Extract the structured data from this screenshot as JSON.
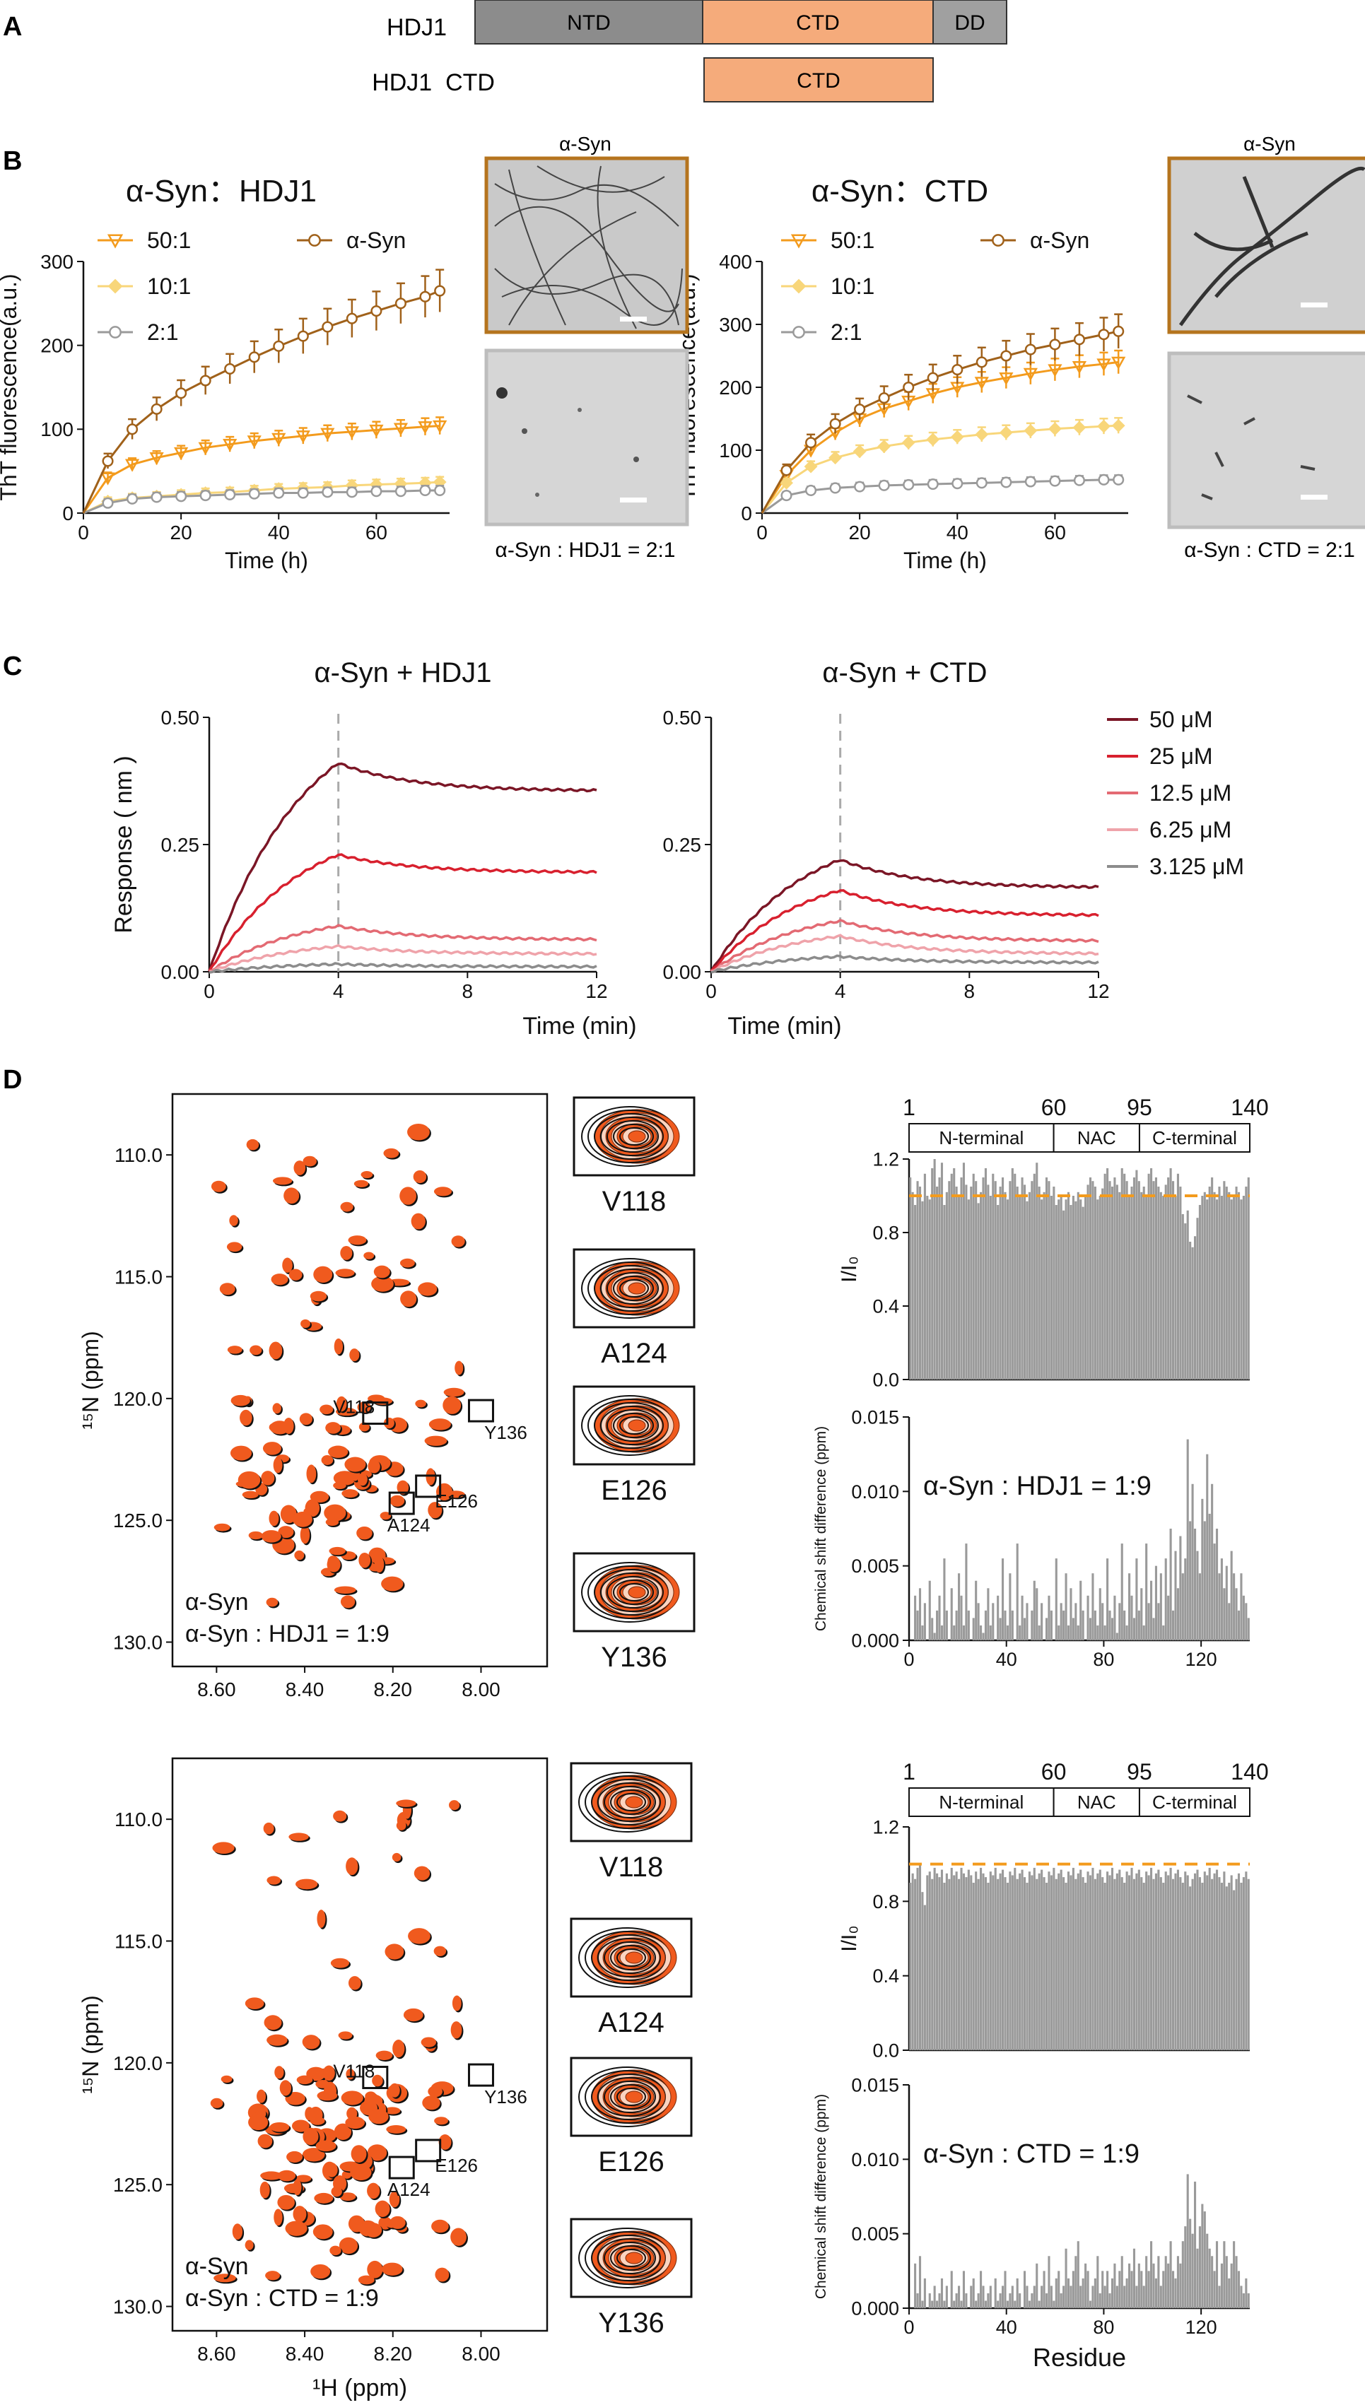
{
  "panel_letters": [
    "A",
    "B",
    "C",
    "D"
  ],
  "colors": {
    "ntd": "#8c8c8c",
    "ctd": "#f5ab7b",
    "dd": "#a0a0a0",
    "asyn": "#a0611a",
    "r50": "#f39b1d",
    "r10": "#f8d67a",
    "r2": "#9a9a9a",
    "c50": "#7b1626",
    "c25": "#d8202e",
    "c12": "#e36a73",
    "c6": "#efa3aa",
    "c3": "#8c8c8c",
    "nmr_orange": "#f05a1e",
    "bar": "#9a9a9a",
    "dash": "#f39b1d"
  },
  "panelA": {
    "rows": [
      {
        "label": "HDJ1",
        "segments": [
          "NTD",
          "CTD",
          "DD"
        ]
      },
      {
        "label": "HDJ1  CTD",
        "segments": [
          "CTD"
        ]
      }
    ]
  },
  "panelB": {
    "micro_title": "α-Syn",
    "caption_left": "α-Syn : HDJ1 = 2:1",
    "caption_right": "α-Syn : CTD = 2:1"
  },
  "panelD": {
    "residue_labels": [
      "V118",
      "A124",
      "E126",
      "Y136"
    ],
    "spectra": [
      {
        "legend1": "α-Syn",
        "legend2": "α-Syn : HDJ1 = 1:9"
      },
      {
        "legend1": "α-Syn",
        "legend2": "α-Syn : CTD = 1:9"
      }
    ],
    "domain_bar": {
      "segments": [
        "N-terminal",
        "NAC",
        "C-terminal"
      ],
      "ticks": [
        "1",
        "60",
        "95",
        "140"
      ]
    },
    "xlabel_nmr": "¹H (ppm)",
    "ylabel_nmr": "¹⁵N (ppm)",
    "ylabel_ratio": "I/I₀",
    "ylabel_csp": "Chemical shift difference (ppm)",
    "xlabel_residue": "Residue"
  },
  "chart_data": [
    {
      "id": "B-left",
      "type": "line",
      "title": "α-Syn：HDJ1",
      "xlabel": "Time (h)",
      "ylabel": "ThT fluorescence(a.u.)",
      "xlim": [
        0,
        75
      ],
      "ylim": [
        0,
        300
      ],
      "xticks": [
        0,
        20,
        40,
        60
      ],
      "yticks": [
        0,
        100,
        200,
        300
      ],
      "x": [
        0,
        5,
        10,
        15,
        20,
        25,
        30,
        35,
        40,
        45,
        50,
        55,
        60,
        65,
        70,
        73
      ],
      "series": [
        {
          "name": "50:1",
          "marker": "triangle-down",
          "values": [
            0,
            42,
            58,
            66,
            72,
            78,
            82,
            86,
            89,
            92,
            95,
            97,
            99,
            101,
            103,
            104
          ]
        },
        {
          "name": "10:1",
          "marker": "diamond",
          "values": [
            0,
            14,
            18,
            20,
            22,
            24,
            25,
            27,
            29,
            30,
            31,
            33,
            34,
            35,
            36,
            37
          ]
        },
        {
          "name": "2:1",
          "marker": "circle",
          "values": [
            0,
            12,
            17,
            19,
            20,
            21,
            22,
            23,
            24,
            24,
            25,
            25,
            26,
            26,
            27,
            27
          ]
        },
        {
          "name": "α-Syn",
          "marker": "circle",
          "values": [
            0,
            62,
            100,
            124,
            143,
            158,
            172,
            186,
            199,
            211,
            222,
            232,
            241,
            250,
            258,
            265
          ]
        }
      ],
      "legend": [
        "50:1",
        "10:1",
        "2:1",
        "α-Syn"
      ]
    },
    {
      "id": "B-right",
      "type": "line",
      "title": "α-Syn：CTD",
      "xlabel": "Time (h)",
      "ylabel": "ThT fluorescence(a.u.)",
      "xlim": [
        0,
        75
      ],
      "ylim": [
        0,
        400
      ],
      "xticks": [
        0,
        20,
        40,
        60
      ],
      "yticks": [
        0,
        100,
        200,
        300,
        400
      ],
      "x": [
        0,
        5,
        10,
        15,
        20,
        25,
        30,
        35,
        40,
        45,
        50,
        55,
        60,
        65,
        70,
        73
      ],
      "series": [
        {
          "name": "50:1",
          "marker": "triangle-down",
          "values": [
            0,
            60,
            100,
            128,
            150,
            166,
            178,
            190,
            200,
            208,
            215,
            222,
            228,
            233,
            237,
            240
          ]
        },
        {
          "name": "10:1",
          "marker": "diamond",
          "values": [
            0,
            48,
            74,
            88,
            98,
            106,
            112,
            117,
            121,
            125,
            128,
            131,
            134,
            136,
            138,
            139
          ]
        },
        {
          "name": "2:1",
          "marker": "circle",
          "values": [
            0,
            28,
            36,
            40,
            42,
            44,
            45,
            46,
            47,
            48,
            49,
            50,
            51,
            52,
            53,
            53
          ]
        },
        {
          "name": "α-Syn",
          "marker": "circle",
          "values": [
            0,
            68,
            112,
            142,
            165,
            183,
            200,
            215,
            228,
            240,
            250,
            260,
            268,
            276,
            284,
            289
          ]
        }
      ],
      "legend": [
        "50:1",
        "10:1",
        "2:1",
        "α-Syn"
      ]
    },
    {
      "id": "C-left",
      "type": "line",
      "title": "α-Syn + HDJ1",
      "xlabel": "Time (min)",
      "ylabel": "Response ( nm )",
      "xlim": [
        0,
        12
      ],
      "ylim": [
        0,
        0.5
      ],
      "xticks": [
        0,
        4,
        8,
        12
      ],
      "yticks": [
        "0.00",
        "0.25",
        "0.50"
      ],
      "association_end": 4,
      "series": [
        {
          "name": "50 μM",
          "peak": 0.41,
          "end": 0.355
        },
        {
          "name": "25 μM",
          "peak": 0.23,
          "end": 0.195
        },
        {
          "name": "12.5 μM",
          "peak": 0.09,
          "end": 0.063
        },
        {
          "name": "6.25 μM",
          "peak": 0.05,
          "end": 0.035
        },
        {
          "name": "3.125 μM",
          "peak": 0.015,
          "end": 0.01
        }
      ]
    },
    {
      "id": "C-right",
      "type": "line",
      "title": "α-Syn + CTD",
      "xlabel": "Time (min)",
      "ylabel": "",
      "xlim": [
        0,
        12
      ],
      "ylim": [
        0,
        0.5
      ],
      "xticks": [
        0,
        4,
        8,
        12
      ],
      "yticks": [
        "0.00",
        "0.25",
        "0.50"
      ],
      "association_end": 4,
      "series": [
        {
          "name": "50 μM",
          "peak": 0.22,
          "end": 0.165
        },
        {
          "name": "25 μM",
          "peak": 0.16,
          "end": 0.11
        },
        {
          "name": "12.5 μM",
          "peak": 0.1,
          "end": 0.06
        },
        {
          "name": "6.25 μM",
          "peak": 0.07,
          "end": 0.035
        },
        {
          "name": "3.125 μM",
          "peak": 0.03,
          "end": 0.018
        }
      ],
      "legend": [
        "50 μM",
        "25 μM",
        "12.5 μM",
        "6.25 μM",
        "3.125 μM"
      ]
    },
    {
      "id": "D-ratio-1",
      "type": "bar",
      "xlabel": "",
      "ylabel": "I/I0",
      "xlim": [
        0,
        140
      ],
      "ylim": [
        0,
        1.2
      ],
      "yticks": [
        "0.0",
        "0.4",
        "0.8",
        "1.2"
      ],
      "reference_line": 1.0,
      "values": [
        1.1,
        1.02,
        0.95,
        1.08,
        1.05,
        0.97,
        1.12,
        1.0,
        0.98,
        1.15,
        1.2,
        1.05,
        1.1,
        1.18,
        0.95,
        1.02,
        1.08,
        1.12,
        1.15,
        1.05,
        1.0,
        1.1,
        1.18,
        1.06,
        0.98,
        1.05,
        1.12,
        1.08,
        0.96,
        1.02,
        1.1,
        1.15,
        1.06,
        1.0,
        1.12,
        1.08,
        0.95,
        1.05,
        1.1,
        1.02,
        0.98,
        1.08,
        1.15,
        1.12,
        1.05,
        1.0,
        1.1,
        1.06,
        0.97,
        1.02,
        1.08,
        1.12,
        1.18,
        1.05,
        0.98,
        1.02,
        1.1,
        1.08,
        1.0,
        1.05,
        0.95,
        0.98,
        1.0,
        0.92,
        0.98,
        1.02,
        0.95,
        1.0,
        0.97,
        1.02,
        0.98,
        0.94,
        1.0,
        1.06,
        1.1,
        1.08,
        1.05,
        0.98,
        1.0,
        1.04,
        1.12,
        1.15,
        1.08,
        1.05,
        1.1,
        1.06,
        1.02,
        1.15,
        1.12,
        1.08,
        1.0,
        1.05,
        1.1,
        1.14,
        1.08,
        1.02,
        1.05,
        1.0,
        1.12,
        1.15,
        1.08,
        1.1,
        1.05,
        1.02,
        1.0,
        1.06,
        1.1,
        1.15,
        1.08,
        1.0,
        1.12,
        1.05,
        0.9,
        0.85,
        0.92,
        0.75,
        0.72,
        0.78,
        0.88,
        0.95,
        1.0,
        1.02,
        0.98,
        1.05,
        1.1,
        1.02,
        0.98,
        1.05,
        1.0,
        1.08,
        1.05,
        1.02,
        0.98,
        1.0,
        1.05,
        1.02,
        0.98,
        1.0,
        1.05,
        1.1
      ]
    },
    {
      "id": "D-csp-1",
      "type": "bar",
      "title": "α-Syn : HDJ1 = 1:9",
      "xlabel": "",
      "ylabel": "Chemical shift difference (ppm)",
      "xlim": [
        0,
        140
      ],
      "ylim": [
        0,
        0.015
      ],
      "xticks": [
        0,
        40,
        80,
        120
      ],
      "yticks": [
        "0.000",
        "0.005",
        "0.010",
        "0.015"
      ],
      "values": [
        0.0,
        0.0,
        0.003,
        0.002,
        0.0035,
        0.001,
        0.0025,
        0.0,
        0.004,
        0.0015,
        0.0005,
        0.002,
        0.003,
        0.001,
        0.0055,
        0.002,
        0.0,
        0.0035,
        0.001,
        0.002,
        0.0045,
        0.003,
        0.001,
        0.0065,
        0.002,
        0.0,
        0.0015,
        0.004,
        0.0025,
        0.001,
        0.0005,
        0.002,
        0.0035,
        0.001,
        0.0025,
        0.0,
        0.003,
        0.0015,
        0.0055,
        0.002,
        0.001,
        0.0045,
        0.002,
        0.0,
        0.0065,
        0.001,
        0.003,
        0.0015,
        0.0025,
        0.0,
        0.002,
        0.004,
        0.0035,
        0.001,
        0.0025,
        0.0,
        0.0015,
        0.003,
        0.002,
        0.0,
        0.0055,
        0.001,
        0.0025,
        0.002,
        0.0045,
        0.001,
        0.0035,
        0.0015,
        0.0025,
        0.001,
        0.004,
        0.002,
        0.0,
        0.003,
        0.0015,
        0.0045,
        0.002,
        0.001,
        0.0035,
        0.0025,
        0.001,
        0.0055,
        0.002,
        0.0015,
        0.003,
        0.0005,
        0.0025,
        0.0065,
        0.002,
        0.001,
        0.0045,
        0.003,
        0.0015,
        0.0055,
        0.002,
        0.0035,
        0.001,
        0.0065,
        0.0025,
        0.004,
        0.0015,
        0.005,
        0.0025,
        0.0045,
        0.001,
        0.0055,
        0.003,
        0.0075,
        0.002,
        0.006,
        0.0035,
        0.007,
        0.0045,
        0.0055,
        0.0135,
        0.008,
        0.0105,
        0.0075,
        0.006,
        0.0045,
        0.0095,
        0.008,
        0.0125,
        0.0085,
        0.0105,
        0.0065,
        0.0075,
        0.0045,
        0.0055,
        0.0035,
        0.005,
        0.0025,
        0.006,
        0.0045,
        0.0035,
        0.002,
        0.0045,
        0.003,
        0.0025,
        0.0015
      ]
    },
    {
      "id": "D-ratio-2",
      "type": "bar",
      "xlabel": "",
      "ylabel": "I/I0",
      "xlim": [
        0,
        140
      ],
      "ylim": [
        0,
        1.2
      ],
      "yticks": [
        "0.0",
        "0.4",
        "0.8",
        "1.2"
      ],
      "reference_line": 1.0,
      "values": [
        0.9,
        0.95,
        0.92,
        0.98,
        1.0,
        0.85,
        0.78,
        0.94,
        0.96,
        0.92,
        0.98,
        0.95,
        0.93,
        0.97,
        0.9,
        0.95,
        0.92,
        0.98,
        0.94,
        0.96,
        0.92,
        0.98,
        0.95,
        0.93,
        0.97,
        0.94,
        0.9,
        0.96,
        0.92,
        0.98,
        0.95,
        0.93,
        0.9,
        0.96,
        0.94,
        0.98,
        0.92,
        0.95,
        0.97,
        0.93,
        0.9,
        0.96,
        0.94,
        0.98,
        0.92,
        0.95,
        0.97,
        0.93,
        0.9,
        0.96,
        0.94,
        0.98,
        0.92,
        0.95,
        0.97,
        0.93,
        0.9,
        0.96,
        0.94,
        0.98,
        0.92,
        0.95,
        0.97,
        0.93,
        0.9,
        0.96,
        0.94,
        0.98,
        0.92,
        0.95,
        0.97,
        0.93,
        0.9,
        0.96,
        0.94,
        0.98,
        0.92,
        0.95,
        0.97,
        0.93,
        0.9,
        0.96,
        0.94,
        0.98,
        0.92,
        0.95,
        0.97,
        0.93,
        0.9,
        0.96,
        0.94,
        0.98,
        0.92,
        0.95,
        0.97,
        0.93,
        0.9,
        0.96,
        0.94,
        0.98,
        0.92,
        0.95,
        0.97,
        0.93,
        0.9,
        0.96,
        0.94,
        0.98,
        0.92,
        0.95,
        0.97,
        0.93,
        0.9,
        0.96,
        0.94,
        0.88,
        0.92,
        0.95,
        0.97,
        0.93,
        0.9,
        0.96,
        0.94,
        0.98,
        0.92,
        0.95,
        0.97,
        0.93,
        0.9,
        0.96,
        0.88,
        0.9,
        0.94,
        0.86,
        0.92,
        0.95,
        0.9,
        0.93,
        0.96,
        0.92
      ]
    },
    {
      "id": "D-csp-2",
      "type": "bar",
      "title": "α-Syn : CTD = 1:9",
      "xlabel": "Residue",
      "ylabel": "Chemical shift difference (ppm)",
      "xlim": [
        0,
        140
      ],
      "ylim": [
        0,
        0.015
      ],
      "xticks": [
        0,
        40,
        80,
        120
      ],
      "yticks": [
        "0.000",
        "0.005",
        "0.010",
        "0.015"
      ],
      "values": [
        0.0,
        0.0,
        0.003,
        0.001,
        0.0035,
        0.0005,
        0.002,
        0.0,
        0.001,
        0.0005,
        0.0015,
        0.0005,
        0.001,
        0.002,
        0.0005,
        0.0015,
        0.0,
        0.0025,
        0.0005,
        0.001,
        0.0015,
        0.0005,
        0.0025,
        0.001,
        0.0,
        0.0015,
        0.002,
        0.0005,
        0.001,
        0.0025,
        0.0015,
        0.0005,
        0.001,
        0.0015,
        0.0,
        0.002,
        0.0005,
        0.001,
        0.0015,
        0.0025,
        0.0005,
        0.001,
        0.0015,
        0.0005,
        0.002,
        0.001,
        0.0,
        0.0025,
        0.0015,
        0.0005,
        0.001,
        0.0015,
        0.003,
        0.0005,
        0.0015,
        0.0025,
        0.001,
        0.0035,
        0.0015,
        0.0005,
        0.002,
        0.0025,
        0.001,
        0.0015,
        0.004,
        0.002,
        0.0015,
        0.0025,
        0.0035,
        0.0045,
        0.0015,
        0.002,
        0.003,
        0.0025,
        0.0005,
        0.0015,
        0.002,
        0.0035,
        0.001,
        0.0025,
        0.0015,
        0.0025,
        0.001,
        0.002,
        0.003,
        0.0015,
        0.0025,
        0.0035,
        0.0015,
        0.002,
        0.003,
        0.0025,
        0.004,
        0.0015,
        0.003,
        0.0025,
        0.0015,
        0.0035,
        0.0025,
        0.0045,
        0.003,
        0.002,
        0.0035,
        0.0015,
        0.0025,
        0.0035,
        0.003,
        0.0045,
        0.0025,
        0.002,
        0.0035,
        0.003,
        0.0045,
        0.0055,
        0.009,
        0.006,
        0.005,
        0.0085,
        0.004,
        0.0055,
        0.007,
        0.0065,
        0.005,
        0.004,
        0.0035,
        0.0025,
        0.0045,
        0.0015,
        0.003,
        0.0045,
        0.0035,
        0.002,
        0.003,
        0.0045,
        0.0035,
        0.0025,
        0.0015,
        0.001,
        0.002,
        0.001
      ]
    }
  ]
}
